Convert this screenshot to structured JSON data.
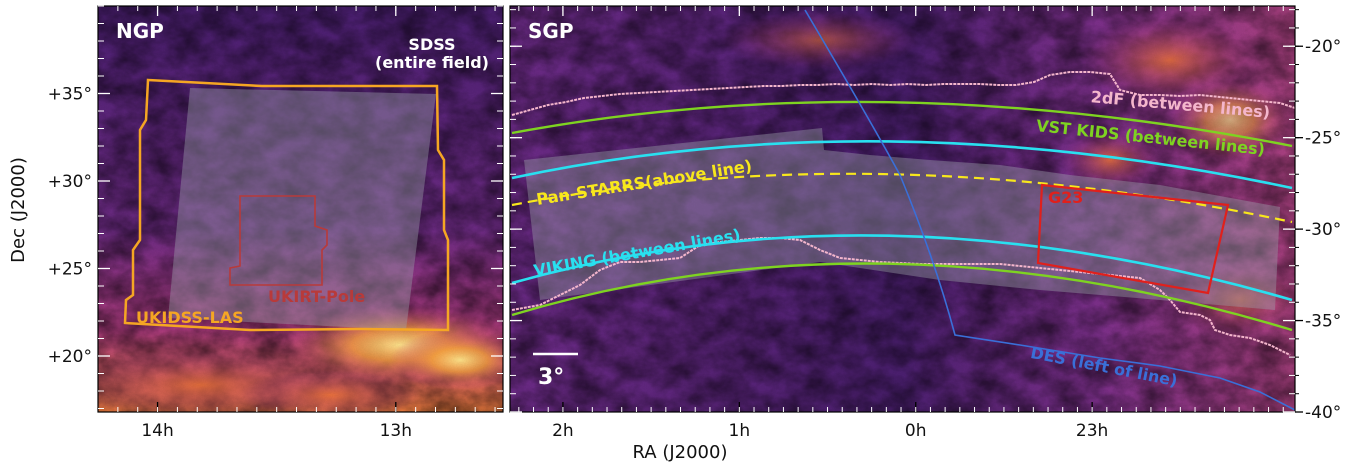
{
  "colors": {
    "bg_dark": "#2a0f4a",
    "bg_mid": "#6a2a8a",
    "bg_warm": "#c6407a",
    "bg_bright": "#f08a3a",
    "bg_hot": "#fde68a",
    "overlay_gray": "#8a8a9a",
    "ukidss": "#f5a623",
    "ukirt": "#b83a3a",
    "sdss": "#ffffff",
    "twodf": "#f4b6cc",
    "vst": "#7ed321",
    "viking": "#29e0f0",
    "panstarrs": "#f8e71c",
    "g23": "#e0201c",
    "des": "#3a6fd8"
  },
  "chart_data": [
    {
      "type": "map",
      "panel": "NGP",
      "title": "NGP",
      "xlabel": "",
      "ylabel": "Dec (J2000)",
      "x_ticks": [
        "14h",
        "13h"
      ],
      "y_ticks": [
        "+20°",
        "+25°",
        "+30°",
        "+35°"
      ],
      "xlim_hours": [
        14.25,
        12.55
      ],
      "ylim_deg": [
        16.8,
        40.0
      ],
      "annotations": [
        {
          "id": "sdss",
          "lines": [
            "SDSS",
            "(entire field)"
          ]
        },
        {
          "id": "ukidss",
          "text": "UKIDSS-LAS"
        },
        {
          "id": "ukirt",
          "text": "UKIRT-Pole"
        }
      ]
    },
    {
      "type": "map",
      "panel": "SGP",
      "title": "SGP",
      "xlabel": "",
      "ylabel": "",
      "x_ticks": [
        "2h",
        "1h",
        "0h",
        "23h"
      ],
      "y_ticks": [
        "-20°",
        "-25°",
        "-30°",
        "-35°",
        "-40°"
      ],
      "xlim_hours": [
        2.3,
        -2.15
      ],
      "ylim_deg": [
        -40.0,
        -17.8
      ],
      "annotations": [
        {
          "id": "twodf",
          "text": "2dF (between lines)"
        },
        {
          "id": "vst",
          "text": "VST KIDS (between lines)"
        },
        {
          "id": "panstarrs",
          "text": "Pan-STARRS(above line)"
        },
        {
          "id": "g23",
          "text": "G23"
        },
        {
          "id": "viking",
          "text": "VIKING (between lines)"
        },
        {
          "id": "des",
          "text": "DES (left of line)"
        }
      ],
      "scale_bar": "3°"
    }
  ],
  "shared": {
    "xlabel": "RA (J2000)"
  }
}
